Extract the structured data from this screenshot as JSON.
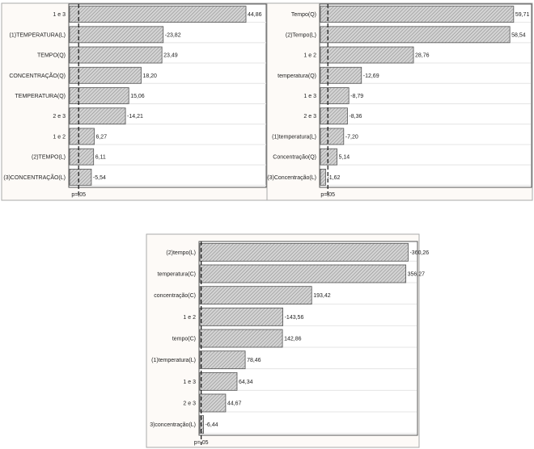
{
  "chart_data": [
    {
      "type": "bar",
      "orientation": "horizontal",
      "categories": [
        "1 e 3",
        "(1)TEMPERATURA(L)",
        "TEMPO(Q)",
        "CONCENTRAÇÃO(Q)",
        "TEMPERATURA(Q)",
        "2 e 3",
        "1 e 2",
        "(2)TEMPO(L)",
        "(3)CONCENTRAÇÃO(L)"
      ],
      "values": [
        44.86,
        -23.82,
        23.49,
        18.2,
        15.06,
        -14.21,
        6.27,
        6.11,
        -5.54
      ],
      "value_labels": [
        "44,86",
        "-23,82",
        "23,49",
        "18,20",
        "15,06",
        "-14,21",
        "6,27",
        "6,11",
        "-5,54"
      ],
      "xlim": [
        0,
        50
      ],
      "reference_value": 2.3,
      "reference_label": "p=,05",
      "grid": true
    },
    {
      "type": "bar",
      "orientation": "horizontal",
      "categories": [
        "Tempo(Q)",
        "(2)Tempo(L)",
        "1 e 2",
        "temperatura(Q)",
        "1 e 3",
        "2 e 3",
        "(1)temperatura(L)",
        "Concentração(Q)",
        "(3)Concentração(L)"
      ],
      "values": [
        59.71,
        58.54,
        28.76,
        -12.69,
        -8.79,
        -8.36,
        -7.2,
        5.14,
        -1.62
      ],
      "value_labels": [
        "59,71",
        "58,54",
        "28,76",
        "-12,69",
        "-8,79",
        "-8,36",
        "-7,20",
        "5,14",
        "-1,62"
      ],
      "xlim": [
        0,
        65
      ],
      "reference_value": 2.3,
      "reference_label": "p=,05",
      "grid": true
    },
    {
      "type": "bar",
      "orientation": "horizontal",
      "categories": [
        "(2)tempo(L)",
        "temperatura(C)",
        "concentração(C)",
        "1 e 2",
        "tempo(C)",
        "(1)temperatura(L)",
        "1 e 3",
        "2 e 3",
        "3)concentração(L)"
      ],
      "values": [
        -360.26,
        356.27,
        193.42,
        -143.56,
        142.86,
        78.46,
        64.34,
        44.67,
        -6.44
      ],
      "value_labels": [
        "-360,26",
        "356,27",
        "193,42",
        "-143,56",
        "142,86",
        "78,46",
        "64,34",
        "44,67",
        "-6,44"
      ],
      "xlim": [
        0,
        375
      ],
      "reference_value": 2.3,
      "reference_label": "p=,05",
      "grid": true
    }
  ]
}
